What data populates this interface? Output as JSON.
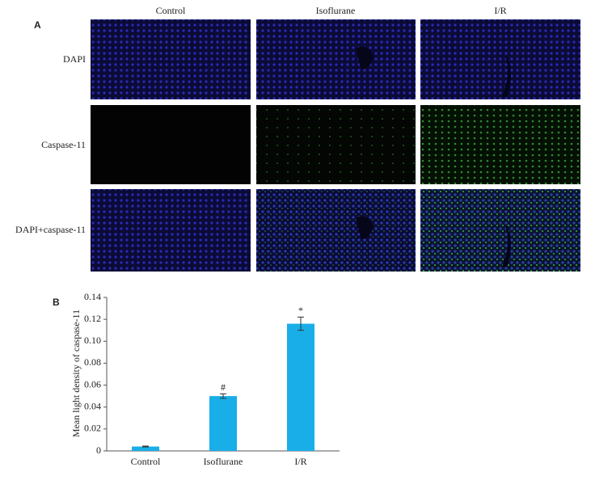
{
  "panel_a": {
    "label": "A",
    "columns": [
      "Control",
      "Isoflurane",
      "I/R"
    ],
    "rows": [
      "DAPI",
      "Caspase-11",
      "DAPI+caspase-11"
    ]
  },
  "chart_data": {
    "type": "bar",
    "panel_label": "B",
    "y_label": "Mean light density of caspase-11",
    "categories": [
      "Control",
      "Isoflurane",
      "I/R"
    ],
    "values": [
      0.004,
      0.05,
      0.116
    ],
    "errors": [
      0.0004,
      0.002,
      0.006
    ],
    "markers": [
      null,
      "#",
      "*"
    ],
    "color": "#19aee8",
    "ylim": [
      0,
      0.14
    ],
    "yticks": [
      0,
      0.02,
      0.04,
      0.06,
      0.08,
      {
        "value": 0.1,
        "label": "0.10"
      },
      0.12,
      0.14
    ],
    "grid": false
  }
}
